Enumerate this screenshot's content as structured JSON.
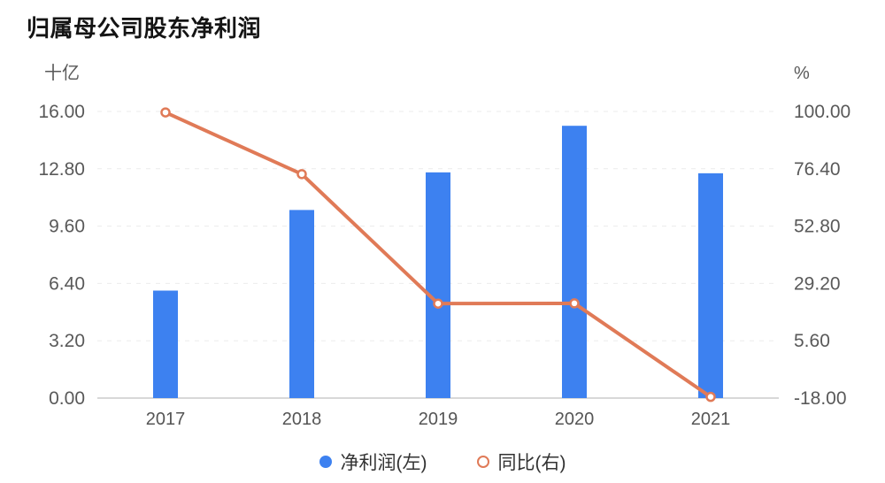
{
  "chart_data": {
    "type": "bar",
    "combo": "bar-left-axis + line-right-axis",
    "title": "归属母公司股东净利润",
    "categories": [
      "2017",
      "2018",
      "2019",
      "2020",
      "2021"
    ],
    "series": [
      {
        "name": "净利润(左)",
        "type": "bar",
        "axis": "left",
        "color": "#3D81F0",
        "values": [
          6.0,
          10.5,
          12.6,
          15.2,
          12.55
        ]
      },
      {
        "name": "同比(右)",
        "type": "line",
        "axis": "right",
        "color": "#E07A57",
        "marker": "open-circle",
        "values": [
          99.6,
          74.2,
          20.9,
          21.0,
          -17.5
        ]
      }
    ],
    "left_axis": {
      "unit": "十亿",
      "min": 0,
      "max": 16,
      "ticks": [
        "16.00",
        "12.80",
        "9.60",
        "6.40",
        "3.20",
        "0.00"
      ]
    },
    "right_axis": {
      "unit": "%",
      "min": -18,
      "max": 100,
      "ticks": [
        "100.00",
        "76.40",
        "52.80",
        "29.20",
        "5.60",
        "-18.00"
      ]
    },
    "legend": [
      {
        "label": "净利润(左)",
        "marker": "filled-circle",
        "color": "#3D81F0"
      },
      {
        "label": "同比(右)",
        "marker": "open-circle",
        "color": "#E07A57"
      }
    ],
    "legend_position": "bottom-center",
    "grid": true,
    "colors": {
      "grid": "#ebebeb",
      "axis_line": "#d8d8d8",
      "tick_text": "#595959",
      "x_text": "#555555",
      "legend_text": "#333333",
      "title_text": "#141414",
      "marker_fill": "#ffffff"
    }
  }
}
